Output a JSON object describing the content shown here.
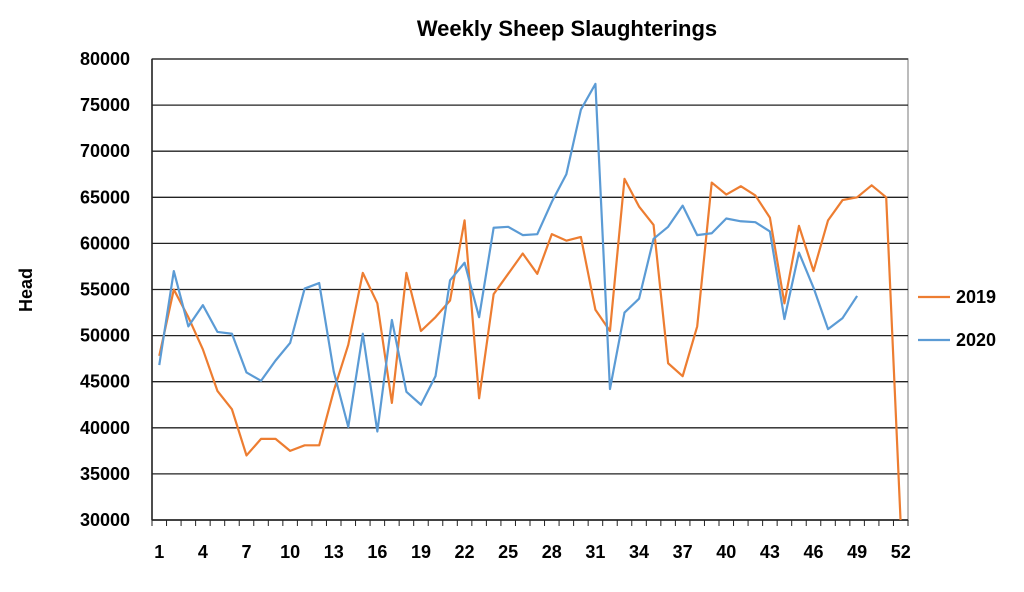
{
  "chart_data": {
    "type": "line",
    "title": "Weekly Sheep Slaughterings",
    "xlabel": "",
    "ylabel": "Head",
    "ylim": [
      30000,
      80000
    ],
    "yticks": [
      30000,
      35000,
      40000,
      45000,
      50000,
      55000,
      60000,
      65000,
      70000,
      75000,
      80000
    ],
    "xlim": [
      1,
      52
    ],
    "xticks": [
      1,
      4,
      7,
      10,
      13,
      16,
      19,
      22,
      25,
      28,
      31,
      34,
      37,
      40,
      43,
      46,
      49,
      52
    ],
    "grid": "horizontal",
    "legend": "right",
    "series": [
      {
        "name": "2019",
        "color": "#ED7D31",
        "values": [
          47800,
          55000,
          52000,
          48500,
          44000,
          42000,
          37000,
          38800,
          38800,
          37500,
          38100,
          38100,
          44000,
          49000,
          56800,
          53500,
          42700,
          56800,
          50500,
          52000,
          53800,
          62500,
          43200,
          54500,
          56700,
          58900,
          56700,
          61000,
          60300,
          60700,
          52800,
          50500,
          67000,
          64000,
          62000,
          47000,
          45600,
          51000,
          66600,
          65300,
          66200,
          65200,
          62800,
          53500,
          61900,
          57000,
          62500,
          64700,
          65000,
          66300,
          65000,
          29500
        ]
      },
      {
        "name": "2020",
        "color": "#5B9BD5",
        "values": [
          46800,
          57000,
          51000,
          53300,
          50400,
          50200,
          46000,
          45100,
          47300,
          49200,
          55100,
          55700,
          46100,
          40100,
          50200,
          39600,
          51700,
          43900,
          42500,
          45600,
          56000,
          57900,
          52000,
          61700,
          61800,
          60900,
          61000,
          64500,
          67500,
          74500,
          77300,
          44200,
          52500,
          54000,
          60500,
          61800,
          64100,
          60900,
          61100,
          62700,
          62400,
          62300,
          61300,
          51800,
          59000,
          55200,
          50700,
          51900,
          54300
        ]
      }
    ]
  }
}
